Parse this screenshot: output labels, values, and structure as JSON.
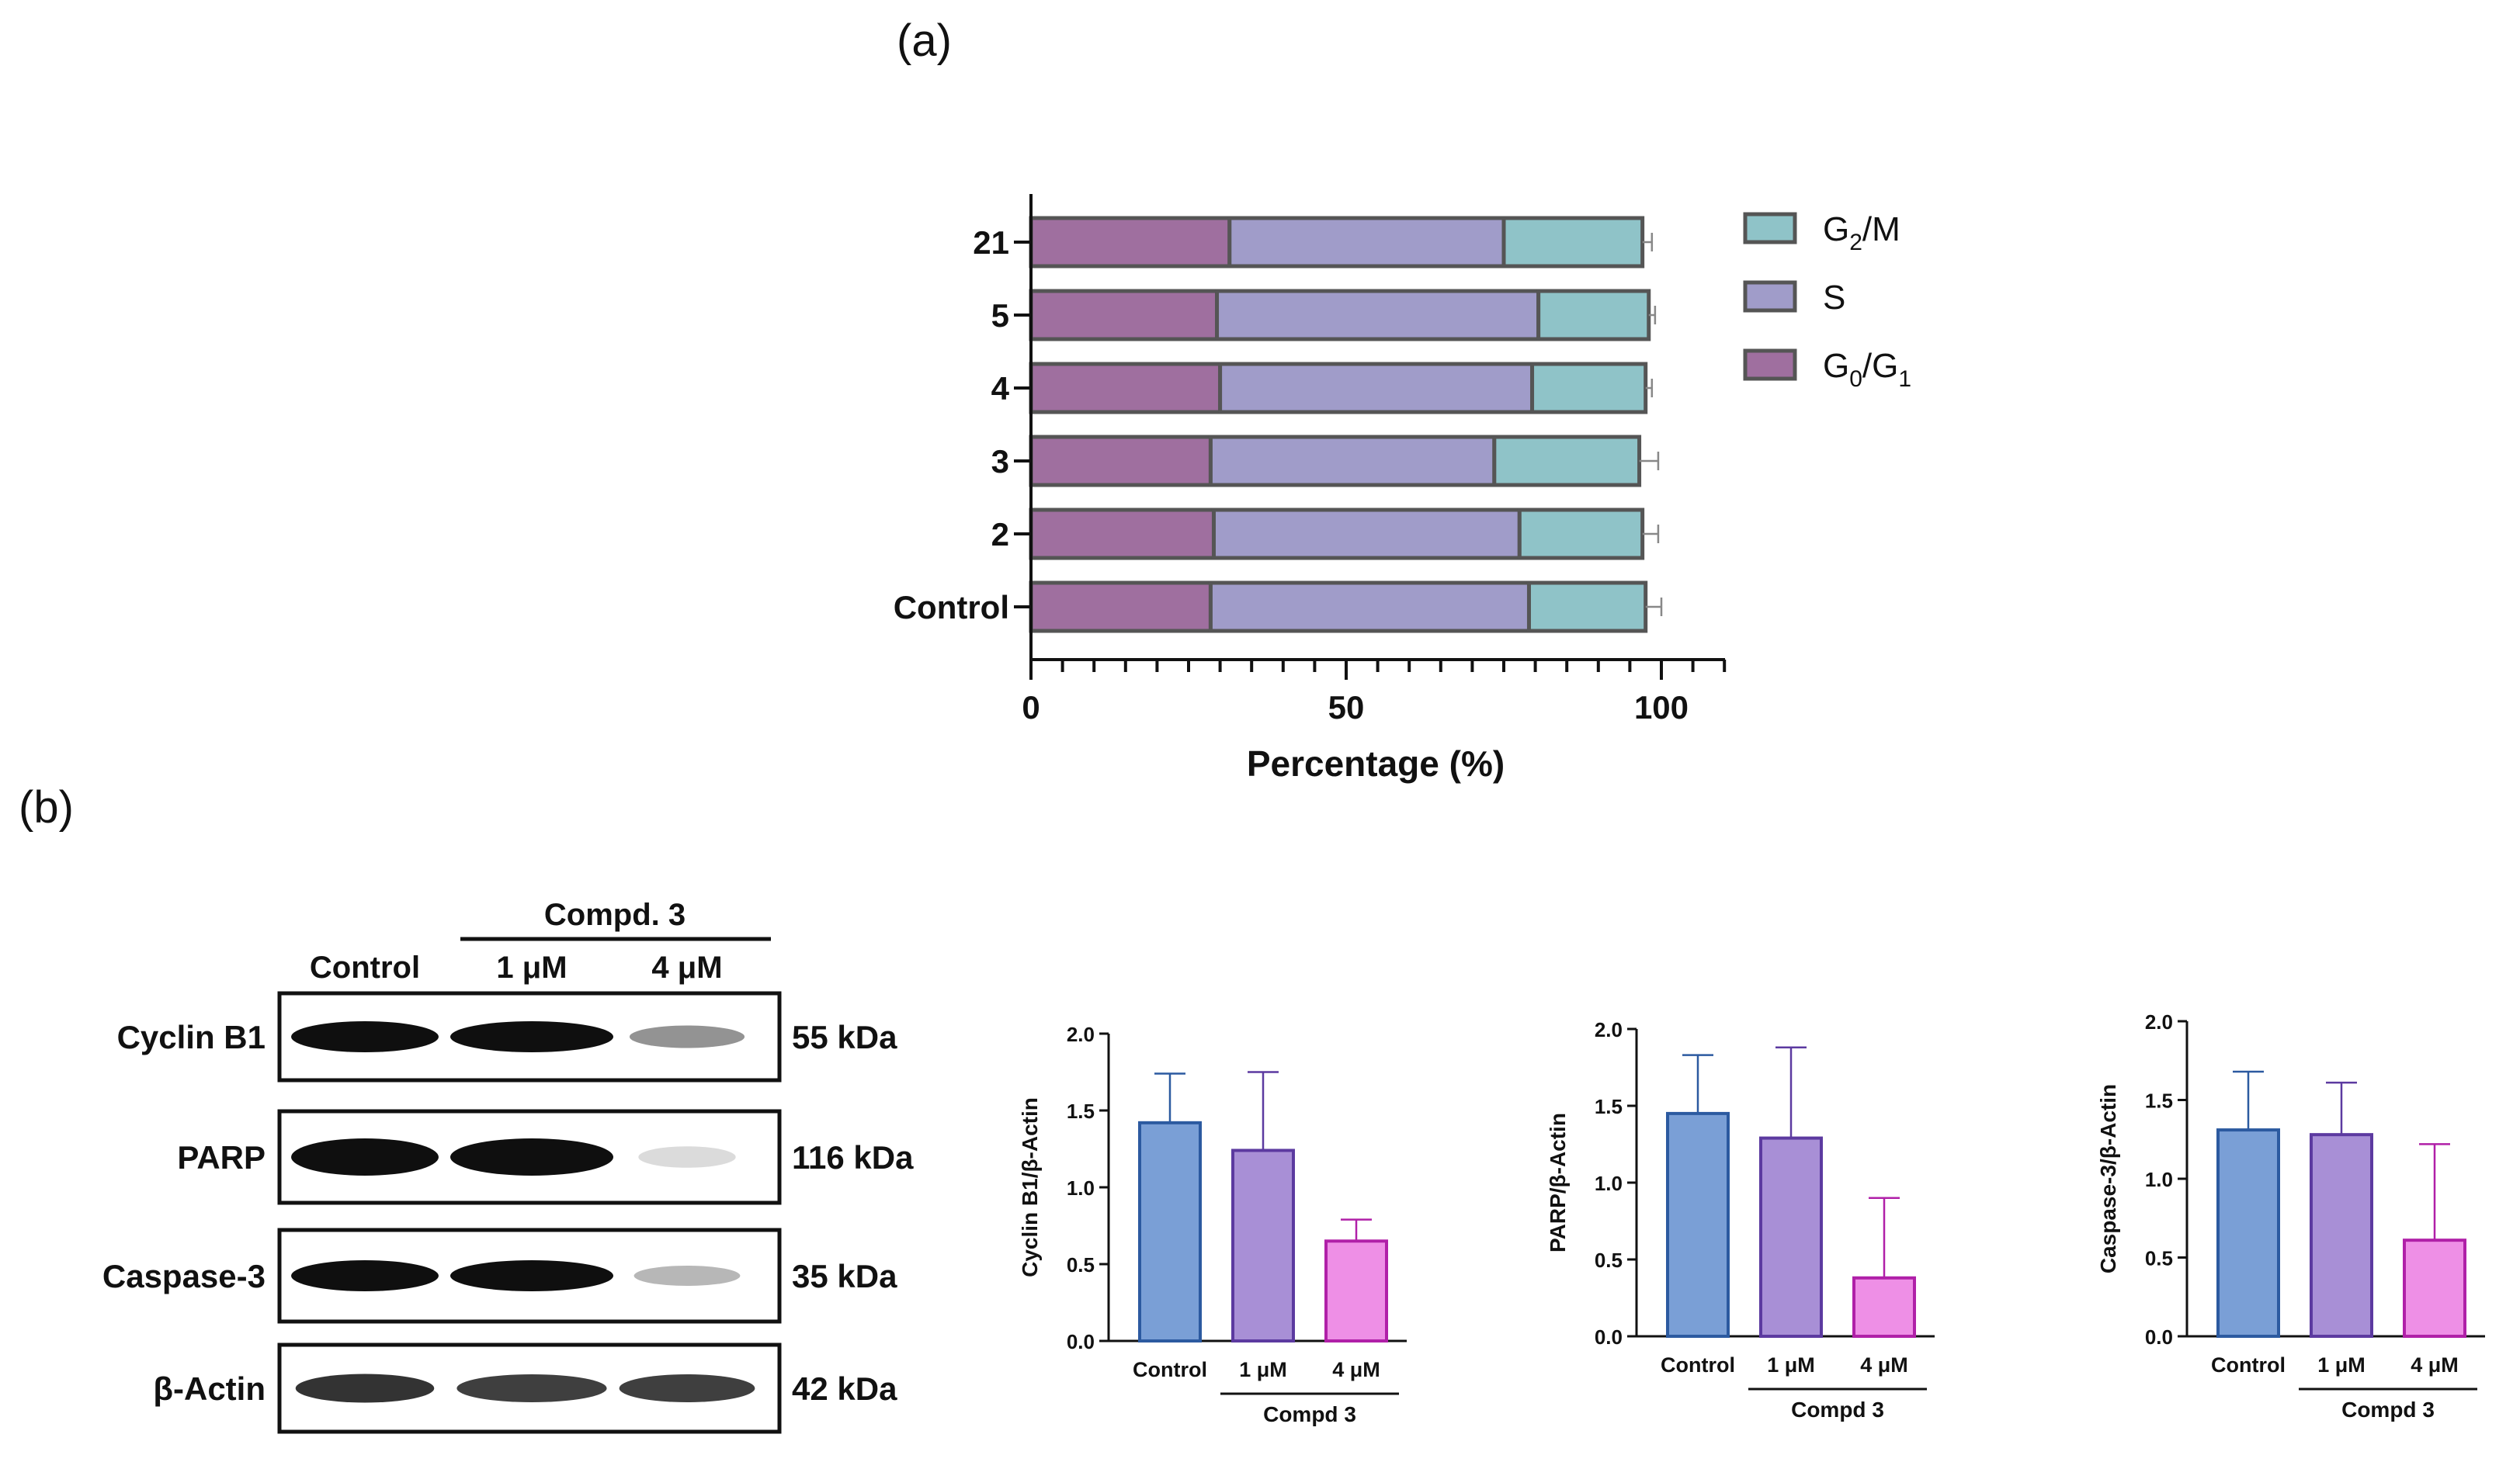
{
  "panel_labels": {
    "a": "(a)",
    "b": "(b)"
  },
  "colors": {
    "g2m": "#8fc3c8",
    "s": "#a09cc9",
    "g0g1": "#9f6f9f",
    "outline": "#555555",
    "control": "#7a9fd6",
    "low": "#a88fd6",
    "high": "#ee8fe6"
  },
  "chart_data": [
    {
      "type": "bar",
      "orientation": "horizontal-stacked",
      "categories": [
        "Control",
        "2",
        "3",
        "4",
        "5",
        "21"
      ],
      "series": [
        {
          "name": "G0/G1",
          "values": [
            28.5,
            29,
            28.5,
            30,
            29.5,
            31.5
          ]
        },
        {
          "name": "S",
          "values": [
            50.5,
            48.5,
            45,
            49.5,
            51,
            43.5
          ]
        },
        {
          "name": "G2/M",
          "values": [
            18.5,
            19.5,
            23,
            18,
            17.5,
            22
          ]
        }
      ],
      "xlabel": "Percentage (%)",
      "xlim": [
        0,
        110
      ],
      "xticks": [
        "0",
        "50",
        "100"
      ],
      "legend": [
        {
          "key": "g2m",
          "main": "G",
          "sub": "2",
          "rest": "/M"
        },
        {
          "key": "s",
          "main": "S",
          "sub": "",
          "rest": ""
        },
        {
          "key": "g0g1",
          "main": "G",
          "sub": "0",
          "rest": "/G",
          "sub2": "1"
        }
      ]
    },
    {
      "type": "bar",
      "categories": [
        "Control",
        "1 μM",
        "4 μM"
      ],
      "values": [
        1.42,
        1.24,
        0.65
      ],
      "errors": [
        0.32,
        0.51,
        0.14
      ],
      "ylabel": "Cyclin B1/β-Actin",
      "ylim": [
        0,
        2.0
      ],
      "yticks": [
        "0.0",
        "0.5",
        "1.0",
        "1.5",
        "2.0"
      ],
      "group_label": "Compd 3"
    },
    {
      "type": "bar",
      "categories": [
        "Control",
        "1 μM",
        "4 μM"
      ],
      "values": [
        1.45,
        1.29,
        0.38
      ],
      "errors": [
        0.38,
        0.59,
        0.52
      ],
      "ylabel": "PARP/β-Actin",
      "ylim": [
        0,
        2.0
      ],
      "yticks": [
        "0.0",
        "0.5",
        "1.0",
        "1.5",
        "2.0"
      ],
      "group_label": "Compd 3"
    },
    {
      "type": "bar",
      "categories": [
        "Control",
        "1 μM",
        "4 μM"
      ],
      "values": [
        1.31,
        1.28,
        0.61
      ],
      "errors": [
        0.37,
        0.33,
        0.61
      ],
      "ylabel": "Caspase-3/β-Actin",
      "ylim": [
        0,
        2.0
      ],
      "yticks": [
        "0.0",
        "0.5",
        "1.0",
        "1.5",
        "2.0"
      ],
      "group_label": "Compd 3"
    }
  ],
  "blot": {
    "group_label": "Compd. 3",
    "lanes": [
      "Control",
      "1 μM",
      "4 μM"
    ],
    "rows": [
      {
        "protein": "Cyclin B1",
        "size": "55 kDa",
        "intensity": [
          1.0,
          1.0,
          0.45
        ]
      },
      {
        "protein": "PARP",
        "size": "116 kDa",
        "intensity": [
          1.0,
          1.0,
          0.15
        ]
      },
      {
        "protein": "Caspase-3",
        "size": "35 kDa",
        "intensity": [
          1.0,
          1.0,
          0.3
        ]
      },
      {
        "protein": "β-Actin",
        "size": "42 kDa",
        "intensity": [
          0.85,
          0.8,
          0.8
        ]
      }
    ]
  }
}
